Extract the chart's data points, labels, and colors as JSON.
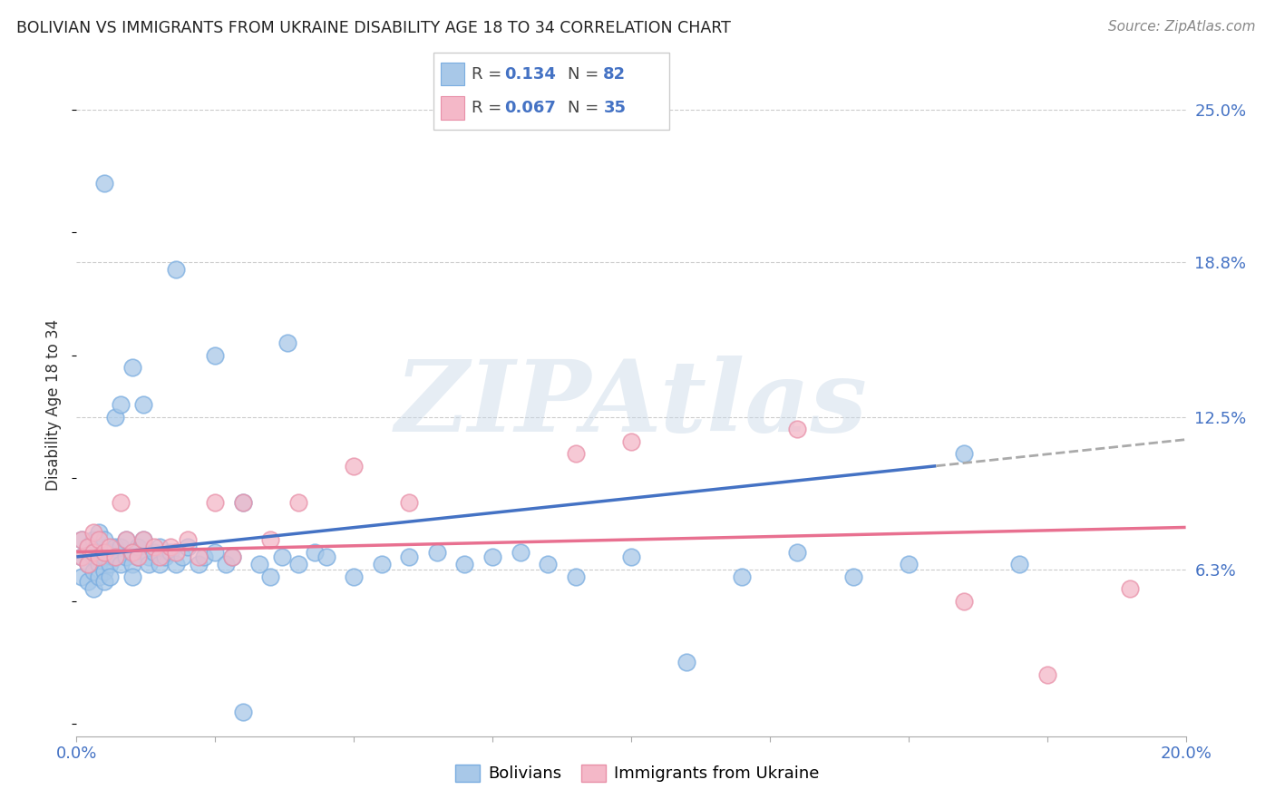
{
  "title": "BOLIVIAN VS IMMIGRANTS FROM UKRAINE DISABILITY AGE 18 TO 34 CORRELATION CHART",
  "source": "Source: ZipAtlas.com",
  "ylabel": "Disability Age 18 to 34",
  "xlim": [
    0.0,
    0.2
  ],
  "ylim": [
    -0.005,
    0.265
  ],
  "yticks_right": [
    0.063,
    0.125,
    0.188,
    0.25
  ],
  "yticklabels_right": [
    "6.3%",
    "12.5%",
    "18.8%",
    "25.0%"
  ],
  "blue_color": "#a8c8e8",
  "blue_edge_color": "#7aade0",
  "pink_color": "#f4b8c8",
  "pink_edge_color": "#e890a8",
  "blue_line_color": "#4472c4",
  "pink_line_color": "#e87090",
  "dash_color": "#aaaaaa",
  "watermark": "ZIPAtlas",
  "blue_x": [
    0.001,
    0.001,
    0.001,
    0.002,
    0.002,
    0.002,
    0.002,
    0.003,
    0.003,
    0.003,
    0.003,
    0.004,
    0.004,
    0.004,
    0.004,
    0.005,
    0.005,
    0.005,
    0.005,
    0.006,
    0.006,
    0.006,
    0.007,
    0.007,
    0.007,
    0.008,
    0.008,
    0.008,
    0.009,
    0.009,
    0.01,
    0.01,
    0.01,
    0.011,
    0.011,
    0.012,
    0.012,
    0.013,
    0.013,
    0.014,
    0.015,
    0.015,
    0.016,
    0.017,
    0.018,
    0.019,
    0.02,
    0.022,
    0.023,
    0.025,
    0.027,
    0.028,
    0.03,
    0.033,
    0.035,
    0.037,
    0.04,
    0.043,
    0.045,
    0.05,
    0.055,
    0.06,
    0.065,
    0.07,
    0.075,
    0.08,
    0.085,
    0.09,
    0.1,
    0.11,
    0.12,
    0.13,
    0.14,
    0.15,
    0.16,
    0.17,
    0.03,
    0.01,
    0.018,
    0.025,
    0.005,
    0.038
  ],
  "blue_y": [
    0.068,
    0.075,
    0.06,
    0.07,
    0.065,
    0.058,
    0.072,
    0.068,
    0.075,
    0.062,
    0.055,
    0.07,
    0.078,
    0.065,
    0.06,
    0.068,
    0.075,
    0.062,
    0.058,
    0.07,
    0.065,
    0.06,
    0.072,
    0.068,
    0.125,
    0.065,
    0.072,
    0.13,
    0.068,
    0.075,
    0.07,
    0.065,
    0.06,
    0.068,
    0.072,
    0.13,
    0.075,
    0.068,
    0.065,
    0.07,
    0.065,
    0.072,
    0.068,
    0.07,
    0.065,
    0.068,
    0.072,
    0.065,
    0.068,
    0.07,
    0.065,
    0.068,
    0.005,
    0.065,
    0.06,
    0.068,
    0.065,
    0.07,
    0.068,
    0.06,
    0.065,
    0.068,
    0.07,
    0.065,
    0.068,
    0.07,
    0.065,
    0.06,
    0.068,
    0.025,
    0.06,
    0.07,
    0.06,
    0.065,
    0.11,
    0.065,
    0.09,
    0.145,
    0.185,
    0.15,
    0.22,
    0.155
  ],
  "pink_x": [
    0.001,
    0.001,
    0.002,
    0.002,
    0.003,
    0.003,
    0.004,
    0.004,
    0.005,
    0.006,
    0.007,
    0.008,
    0.009,
    0.01,
    0.011,
    0.012,
    0.014,
    0.015,
    0.017,
    0.018,
    0.02,
    0.022,
    0.025,
    0.028,
    0.03,
    0.035,
    0.04,
    0.05,
    0.06,
    0.09,
    0.1,
    0.13,
    0.16,
    0.175,
    0.19
  ],
  "pink_y": [
    0.068,
    0.075,
    0.072,
    0.065,
    0.07,
    0.078,
    0.068,
    0.075,
    0.07,
    0.072,
    0.068,
    0.09,
    0.075,
    0.07,
    0.068,
    0.075,
    0.072,
    0.068,
    0.072,
    0.07,
    0.075,
    0.068,
    0.09,
    0.068,
    0.09,
    0.075,
    0.09,
    0.105,
    0.09,
    0.11,
    0.115,
    0.12,
    0.05,
    0.02,
    0.055
  ]
}
